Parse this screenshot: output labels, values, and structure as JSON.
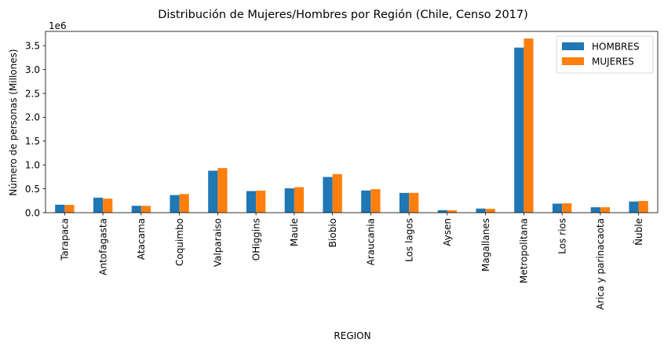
{
  "chart_data": {
    "type": "bar",
    "title": "Distribución de Mujeres/Hombres por Región (Chile, Censo 2017)",
    "xlabel": "REGION",
    "ylabel": "Número de personas (Millones)",
    "y_offset_label": "1e6",
    "y_scale": 1000000,
    "ylim": [
      0,
      3800000
    ],
    "yticks": [
      0,
      500000,
      1000000,
      1500000,
      2000000,
      2500000,
      3000000,
      3500000
    ],
    "ytick_labels": [
      "0.0",
      "0.5",
      "1.0",
      "1.5",
      "2.0",
      "2.5",
      "3.0",
      "3.5"
    ],
    "grid": false,
    "legend_position": "top-right",
    "categories": [
      "Tarapaca",
      "Antofagasta",
      "Atacama",
      "Coquimbo",
      "Valparaiso",
      "OHiggins",
      "Maule",
      "Biobio",
      "Araucania",
      "Los lagos",
      "Aysen",
      "Magallanes",
      "Metropolitana",
      "Los rios",
      "Arica y parinacaota",
      "Ñuble"
    ],
    "series": [
      {
        "name": "HOMBRES",
        "color": "#1f77b4",
        "values": [
          167000,
          315000,
          144000,
          369000,
          880000,
          453000,
          511000,
          748000,
          465000,
          414000,
          53000,
          86000,
          3460000,
          189000,
          113000,
          234000
        ]
      },
      {
        "name": "MUJERES",
        "color": "#ff7f0e",
        "values": [
          163000,
          293000,
          142000,
          390000,
          935000,
          462000,
          534000,
          808000,
          493000,
          415000,
          51000,
          80000,
          3650000,
          196000,
          114000,
          246000
        ]
      }
    ]
  }
}
